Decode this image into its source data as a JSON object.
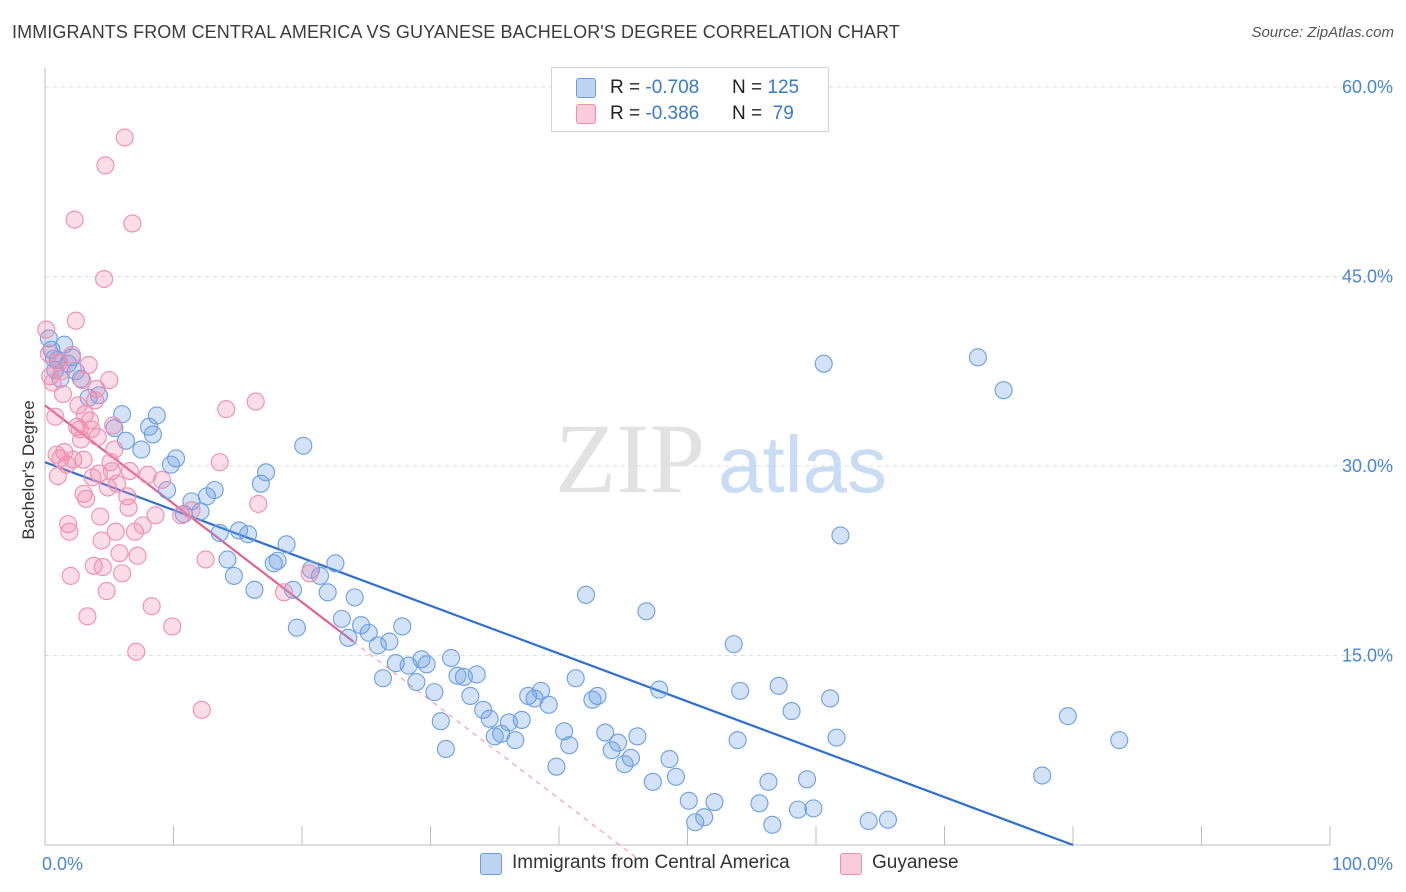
{
  "title": "IMMIGRANTS FROM CENTRAL AMERICA VS GUYANESE BACHELOR'S DEGREE CORRELATION CHART",
  "source": "Source: ZipAtlas.com",
  "watermark": {
    "zip": "ZIP",
    "atlas": "atlas"
  },
  "legend_top": [
    {
      "r_label": "R = ",
      "r_value": "-0.708",
      "n_label": "N = ",
      "n_value": "125",
      "color": "#6d9fe0"
    },
    {
      "r_label": "R = ",
      "r_value": "-0.386",
      "n_label": "N = ",
      "n_value": " 79",
      "color": "#f08eb0"
    }
  ],
  "legend_bottom": [
    {
      "label": "Immigrants from Central America",
      "color": "#6d9fe0"
    },
    {
      "label": "Guyanese",
      "color": "#f08eb0"
    }
  ],
  "chart_data": {
    "type": "scatter",
    "ylabel": "Bachelor's Degree",
    "xlim": [
      0,
      100
    ],
    "ylim": [
      0,
      60
    ],
    "y_ticks": [
      {
        "value": 15,
        "label": "15.0%"
      },
      {
        "value": 30,
        "label": "30.0%"
      },
      {
        "value": 45,
        "label": "45.0%"
      },
      {
        "value": 60,
        "label": "60.0%"
      }
    ],
    "x_tick_labels": [
      {
        "value": 0,
        "label": "0.0%"
      },
      {
        "value": 100,
        "label": "100.0%"
      }
    ],
    "grid": true,
    "series": [
      {
        "name": "Immigrants from Central America",
        "color": "#6d9fe0",
        "trend": {
          "x0": 0,
          "y0": 30.3,
          "x1": 80,
          "y1": 0
        },
        "points": [
          [
            0.3,
            40.1
          ],
          [
            0.5,
            39.2
          ],
          [
            0.7,
            38.5
          ],
          [
            0.8,
            37.6
          ],
          [
            1.0,
            38.4
          ],
          [
            1.2,
            36.9
          ],
          [
            1.5,
            39.6
          ],
          [
            1.8,
            38.1
          ],
          [
            2.1,
            38.6
          ],
          [
            2.4,
            37.5
          ],
          [
            2.8,
            36.9
          ],
          [
            3.4,
            35.4
          ],
          [
            4.2,
            35.6
          ],
          [
            5.4,
            33.0
          ],
          [
            6.0,
            34.1
          ],
          [
            6.3,
            32.0
          ],
          [
            7.5,
            31.3
          ],
          [
            8.1,
            33.1
          ],
          [
            8.4,
            32.5
          ],
          [
            8.7,
            34.0
          ],
          [
            9.8,
            30.1
          ],
          [
            10.2,
            30.6
          ],
          [
            9.5,
            28.1
          ],
          [
            10.8,
            26.2
          ],
          [
            11.4,
            27.2
          ],
          [
            12.1,
            26.4
          ],
          [
            12.6,
            27.6
          ],
          [
            13.2,
            28.1
          ],
          [
            13.6,
            24.7
          ],
          [
            14.2,
            22.6
          ],
          [
            14.7,
            21.3
          ],
          [
            15.1,
            24.9
          ],
          [
            15.8,
            24.6
          ],
          [
            16.3,
            20.2
          ],
          [
            16.8,
            28.6
          ],
          [
            17.2,
            29.5
          ],
          [
            17.8,
            22.3
          ],
          [
            18.1,
            22.5
          ],
          [
            18.8,
            23.8
          ],
          [
            19.3,
            20.2
          ],
          [
            19.6,
            17.2
          ],
          [
            20.1,
            31.6
          ],
          [
            20.7,
            21.8
          ],
          [
            21.4,
            21.3
          ],
          [
            22.0,
            20.0
          ],
          [
            22.6,
            22.3
          ],
          [
            23.1,
            17.9
          ],
          [
            23.6,
            16.4
          ],
          [
            24.1,
            19.6
          ],
          [
            24.6,
            17.4
          ],
          [
            25.2,
            16.8
          ],
          [
            25.9,
            15.8
          ],
          [
            26.3,
            13.2
          ],
          [
            26.8,
            16.1
          ],
          [
            27.3,
            14.4
          ],
          [
            27.8,
            17.3
          ],
          [
            28.3,
            14.2
          ],
          [
            28.9,
            12.9
          ],
          [
            29.3,
            14.7
          ],
          [
            29.7,
            14.3
          ],
          [
            30.3,
            12.1
          ],
          [
            30.8,
            9.8
          ],
          [
            31.2,
            7.6
          ],
          [
            31.6,
            14.8
          ],
          [
            32.1,
            13.4
          ],
          [
            32.6,
            13.3
          ],
          [
            33.1,
            11.8
          ],
          [
            33.6,
            13.5
          ],
          [
            34.1,
            10.7
          ],
          [
            34.6,
            10.0
          ],
          [
            35.0,
            8.6
          ],
          [
            35.5,
            8.8
          ],
          [
            36.1,
            9.7
          ],
          [
            36.6,
            8.3
          ],
          [
            37.1,
            9.9
          ],
          [
            37.6,
            11.8
          ],
          [
            38.1,
            11.6
          ],
          [
            38.6,
            12.2
          ],
          [
            39.2,
            11.1
          ],
          [
            39.8,
            6.2
          ],
          [
            40.4,
            9.0
          ],
          [
            40.8,
            7.9
          ],
          [
            41.3,
            13.2
          ],
          [
            42.1,
            19.8
          ],
          [
            42.6,
            11.5
          ],
          [
            43.0,
            11.8
          ],
          [
            43.6,
            8.9
          ],
          [
            44.1,
            7.5
          ],
          [
            44.6,
            8.1
          ],
          [
            45.1,
            6.4
          ],
          [
            45.6,
            6.9
          ],
          [
            46.1,
            8.6
          ],
          [
            46.8,
            18.5
          ],
          [
            47.3,
            5.0
          ],
          [
            47.8,
            12.3
          ],
          [
            48.6,
            6.8
          ],
          [
            49.1,
            5.4
          ],
          [
            50.1,
            3.5
          ],
          [
            50.6,
            1.8
          ],
          [
            51.3,
            2.2
          ],
          [
            52.1,
            3.4
          ],
          [
            53.6,
            15.9
          ],
          [
            53.9,
            8.3
          ],
          [
            54.1,
            12.2
          ],
          [
            55.6,
            3.3
          ],
          [
            56.3,
            5.0
          ],
          [
            56.6,
            1.6
          ],
          [
            57.1,
            12.6
          ],
          [
            58.1,
            10.6
          ],
          [
            58.6,
            2.8
          ],
          [
            59.3,
            5.2
          ],
          [
            59.8,
            2.9
          ],
          [
            60.6,
            38.1
          ],
          [
            61.1,
            11.6
          ],
          [
            61.6,
            8.5
          ],
          [
            61.9,
            24.5
          ],
          [
            64.1,
            1.9
          ],
          [
            65.6,
            2.0
          ],
          [
            72.6,
            38.6
          ],
          [
            74.6,
            36.0
          ],
          [
            77.6,
            5.5
          ],
          [
            79.6,
            10.2
          ],
          [
            83.6,
            8.3
          ]
        ]
      },
      {
        "name": "Guyanese",
        "color": "#f08eb0",
        "trend": {
          "x0": 0,
          "y0": 34.8,
          "x1": 24,
          "y1": 16.1
        },
        "trend_ext": {
          "x0": 24,
          "y0": 16.1,
          "x1": 46,
          "y1": -1
        },
        "points": [
          [
            0.1,
            40.8
          ],
          [
            0.3,
            38.9
          ],
          [
            0.4,
            37.1
          ],
          [
            0.6,
            36.6
          ],
          [
            0.8,
            33.9
          ],
          [
            0.9,
            30.9
          ],
          [
            1.0,
            29.2
          ],
          [
            1.1,
            38.2
          ],
          [
            1.3,
            37.5
          ],
          [
            1.4,
            35.7
          ],
          [
            1.5,
            31.1
          ],
          [
            1.7,
            30.1
          ],
          [
            1.8,
            25.4
          ],
          [
            1.9,
            24.8
          ],
          [
            2.0,
            21.3
          ],
          [
            2.1,
            38.8
          ],
          [
            2.2,
            30.5
          ],
          [
            2.3,
            49.5
          ],
          [
            2.4,
            41.5
          ],
          [
            2.6,
            34.8
          ],
          [
            2.7,
            32.9
          ],
          [
            2.8,
            32.1
          ],
          [
            2.9,
            36.8
          ],
          [
            3.0,
            30.5
          ],
          [
            3.1,
            34.1
          ],
          [
            3.2,
            27.4
          ],
          [
            3.3,
            18.1
          ],
          [
            3.4,
            38.0
          ],
          [
            3.5,
            33.6
          ],
          [
            3.6,
            32.9
          ],
          [
            3.7,
            29.1
          ],
          [
            3.8,
            22.1
          ],
          [
            3.9,
            35.2
          ],
          [
            4.0,
            36.1
          ],
          [
            4.1,
            32.3
          ],
          [
            4.2,
            29.4
          ],
          [
            4.3,
            26.0
          ],
          [
            4.4,
            24.1
          ],
          [
            4.5,
            22.0
          ],
          [
            4.6,
            44.8
          ],
          [
            4.7,
            53.8
          ],
          [
            4.8,
            20.1
          ],
          [
            4.9,
            28.3
          ],
          [
            5.0,
            36.8
          ],
          [
            5.1,
            30.3
          ],
          [
            5.2,
            29.6
          ],
          [
            5.3,
            33.2
          ],
          [
            5.4,
            31.3
          ],
          [
            5.6,
            28.6
          ],
          [
            5.8,
            23.1
          ],
          [
            6.0,
            21.5
          ],
          [
            6.2,
            56.0
          ],
          [
            6.4,
            27.6
          ],
          [
            6.5,
            26.7
          ],
          [
            6.6,
            29.6
          ],
          [
            6.8,
            49.2
          ],
          [
            7.0,
            24.8
          ],
          [
            7.1,
            15.3
          ],
          [
            7.2,
            22.9
          ],
          [
            7.6,
            25.3
          ],
          [
            8.0,
            29.3
          ],
          [
            8.3,
            18.9
          ],
          [
            8.6,
            26.1
          ],
          [
            9.1,
            28.9
          ],
          [
            9.9,
            17.3
          ],
          [
            10.6,
            26.1
          ],
          [
            11.4,
            26.5
          ],
          [
            12.2,
            10.7
          ],
          [
            12.5,
            22.6
          ],
          [
            13.6,
            30.3
          ],
          [
            14.1,
            34.5
          ],
          [
            16.4,
            35.1
          ],
          [
            16.6,
            27.0
          ],
          [
            18.6,
            20.0
          ],
          [
            20.6,
            21.5
          ],
          [
            2.5,
            33.1
          ],
          [
            3.0,
            27.8
          ],
          [
            1.2,
            30.6
          ],
          [
            5.5,
            24.8
          ]
        ]
      }
    ]
  }
}
